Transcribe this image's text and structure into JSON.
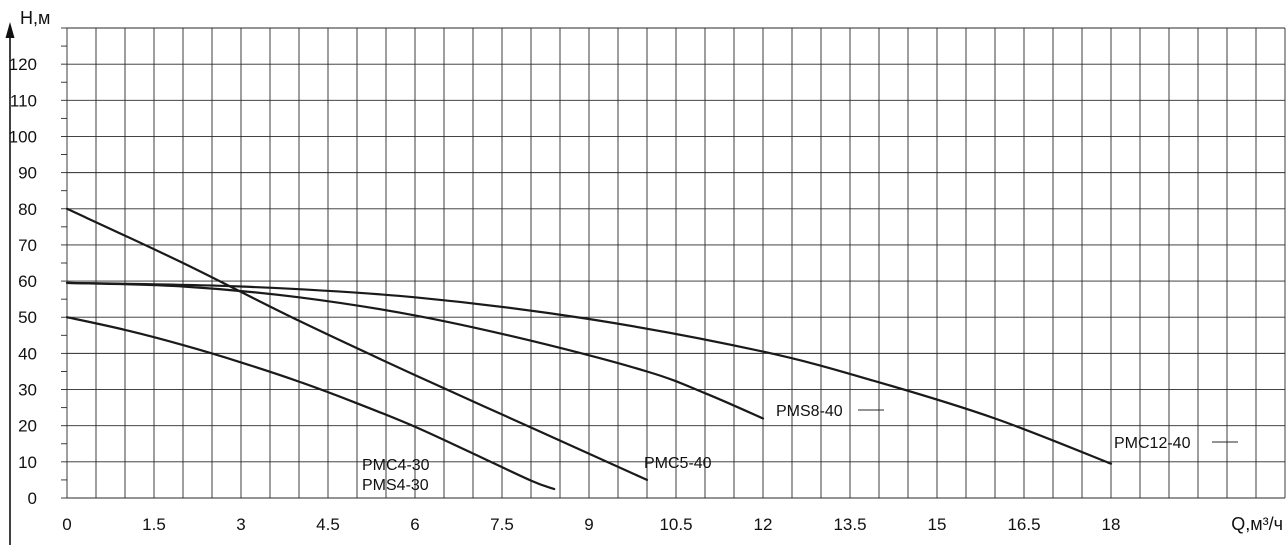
{
  "chart_data": {
    "type": "line",
    "title": "",
    "ylabel": "H,м",
    "xlabel": "Q,м³/ч",
    "xlim": [
      0,
      21
    ],
    "ylim": [
      0,
      130
    ],
    "x_ticks": [
      "0",
      "1.5",
      "3",
      "4.5",
      "6",
      "7.5",
      "9",
      "10.5",
      "12",
      "13.5",
      "15",
      "16.5",
      "18"
    ],
    "y_ticks": [
      "0",
      "10",
      "20",
      "30",
      "40",
      "50",
      "60",
      "70",
      "80",
      "90",
      "100",
      "110",
      "120"
    ],
    "grid": true,
    "series": [
      {
        "name": "PMC4-30\nPMS4-30",
        "label_lines": [
          "PMC4-30",
          "PMS4-30"
        ],
        "x": [
          0,
          1,
          2,
          3,
          4,
          5,
          6,
          7,
          8,
          8.4
        ],
        "y": [
          50,
          46.5,
          42.3,
          37.5,
          32.2,
          26.2,
          19.7,
          12.3,
          4.8,
          2.5
        ]
      },
      {
        "name": "PMC5-40",
        "label_lines": [
          "PMC5-40"
        ],
        "x": [
          0,
          2,
          4,
          6,
          8,
          10
        ],
        "y": [
          80,
          65,
          49,
          34,
          19.5,
          5
        ]
      },
      {
        "name": "PMS8-40",
        "label_lines": [
          "PMS8-40"
        ],
        "x": [
          0,
          2,
          4,
          6,
          8,
          10,
          11,
          12
        ],
        "y": [
          59.5,
          58.5,
          55.5,
          50.5,
          43.5,
          35,
          29,
          22
        ]
      },
      {
        "name": "PMC12-40",
        "label_lines": [
          "PMC12-40"
        ],
        "x": [
          0,
          3,
          6,
          9,
          12,
          14,
          16,
          18
        ],
        "y": [
          59.5,
          58.5,
          55.5,
          49.5,
          40.5,
          32,
          22,
          9.5
        ]
      }
    ]
  }
}
